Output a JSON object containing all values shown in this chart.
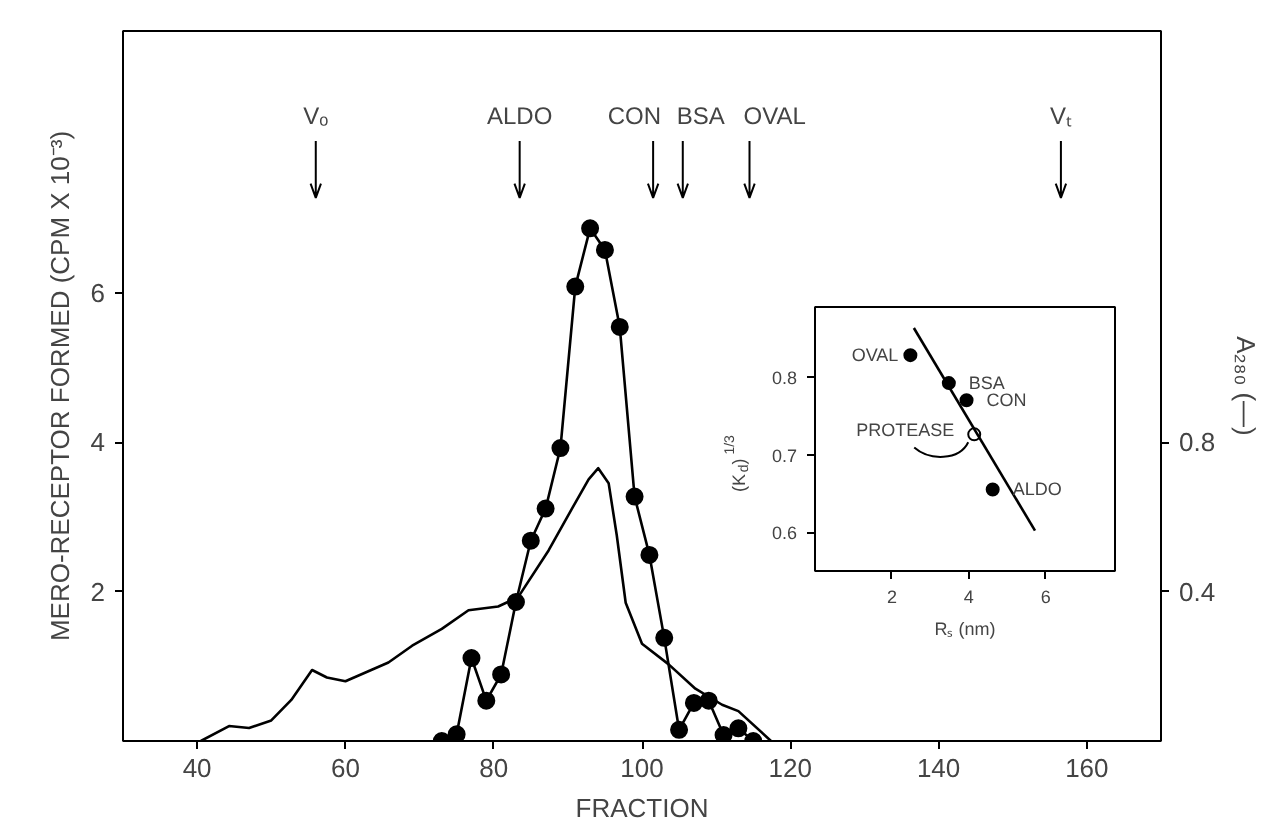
{
  "chart_data": [
    {
      "type": "line",
      "xlabel": "FRACTION",
      "ylabel": "MERO-RECEPTOR FORMED (CPM X 10⁻³)",
      "y2label": "A₂₈₀ (—)",
      "xlim": [
        30,
        170
      ],
      "xticks": [
        40,
        60,
        80,
        100,
        120,
        140,
        160
      ],
      "ylim": [
        0,
        9.5
      ],
      "yticks": [
        2,
        4,
        6
      ],
      "y2lim": [
        0,
        1.9
      ],
      "y2ticks": [
        0.4,
        0.8
      ],
      "series": [
        {
          "color": "#000000",
          "marker": "circle",
          "x": [
            73,
            75,
            77,
            79,
            81,
            83,
            85,
            87,
            89,
            91,
            93,
            95,
            97,
            99,
            101,
            103,
            105,
            107,
            109,
            111,
            113,
            115
          ],
          "values": [
            0,
            0.09,
            1.11,
            0.54,
            0.89,
            1.86,
            2.68,
            3.11,
            3.92,
            6.08,
            6.86,
            6.57,
            5.54,
            3.27,
            2.49,
            1.38,
            0.15,
            0.51,
            0.54,
            0.08,
            0.17,
            0
          ]
        },
        {
          "color": "#000000",
          "marker": "none",
          "axis": "y2",
          "x": [
            40.5,
            44.3,
            47,
            50,
            52.7,
            55.5,
            57.5,
            60,
            65.8,
            69,
            73,
            76.6,
            80.6,
            83.3,
            87.4,
            90.5,
            92.8,
            94.1,
            95.5,
            96.6,
            97.8,
            100,
            103.6,
            107.2,
            110.8,
            113,
            117.4
          ],
          "values": [
            0,
            0.04,
            0.035,
            0.055,
            0.11,
            0.19,
            0.17,
            0.16,
            0.21,
            0.255,
            0.3,
            0.35,
            0.36,
            0.385,
            0.51,
            0.62,
            0.7,
            0.73,
            0.69,
            0.55,
            0.37,
            0.26,
            0.205,
            0.14,
            0.097,
            0.08,
            0
          ]
        }
      ],
      "ref_lines": [
        {
          "axis": "x",
          "value": 56,
          "label": "Vₒ"
        },
        {
          "axis": "x",
          "value": 83.5,
          "label": "ALDO"
        },
        {
          "axis": "x",
          "value": 101.5,
          "label": "CON"
        },
        {
          "axis": "x",
          "value": 105.5,
          "label": "BSA"
        },
        {
          "axis": "x",
          "value": 114.5,
          "label": "OVAL"
        },
        {
          "axis": "x",
          "value": 156.5,
          "label": "Vₜ"
        }
      ]
    },
    {
      "type": "scatter",
      "xlabel": "Rₛ (nm)",
      "ylabel": "(K$_{d}$)$^{1/3}$",
      "xlim": [
        0,
        7.8
      ],
      "xticks": [
        2,
        4,
        6
      ],
      "ylim": [
        0.55,
        0.89
      ],
      "yticks": [
        0.6,
        0.7,
        0.8
      ],
      "series": [
        {
          "color": "#000000",
          "marker": "circle",
          "x": [
            2.48,
            3.48,
            3.94,
            4.62
          ],
          "values": [
            0.828,
            0.792,
            0.77,
            0.655
          ]
        },
        {
          "color": "#ffffff",
          "marker": "circle",
          "x": [
            4.14
          ],
          "values": [
            0.726
          ]
        },
        {
          "type": "line",
          "color": "#000000",
          "marker": "none",
          "x": [
            2.57,
            5.72
          ],
          "values": [
            0.863,
            0.602
          ]
        }
      ],
      "annotations": [
        {
          "text": "OVAL",
          "x": 2.48,
          "y": 0.828
        },
        {
          "text": "BSA",
          "x": 3.48,
          "y": 0.792
        },
        {
          "text": "CON",
          "x": 3.94,
          "y": 0.77
        },
        {
          "text": "PROTEASE",
          "x": 4.14,
          "y": 0.726
        },
        {
          "text": "ALDO",
          "x": 4.62,
          "y": 0.655
        }
      ]
    }
  ]
}
